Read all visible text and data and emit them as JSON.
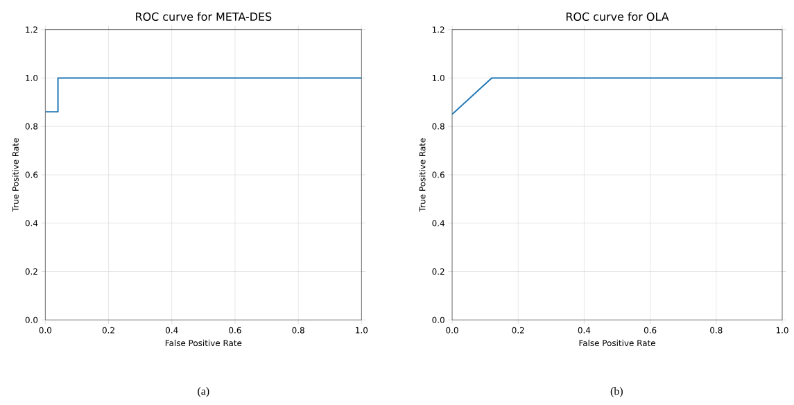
{
  "chart_data": [
    {
      "type": "line",
      "title": "ROC curve for META-DES",
      "xlabel": "False Positive Rate",
      "ylabel": "True Positive Rate",
      "x": [
        0,
        0.04,
        0.04,
        1
      ],
      "values": [
        0.86,
        0.86,
        1.0,
        1.0
      ],
      "color": "#1f77b4",
      "xlim": [
        0,
        1
      ],
      "ylim": [
        0,
        1.2
      ],
      "xticks": [
        {
          "value": 0,
          "label": "0.0"
        },
        {
          "value": 0.2,
          "label": "0.2"
        },
        {
          "value": 0.4,
          "label": "0.4"
        },
        {
          "value": 0.6,
          "label": "0.6"
        },
        {
          "value": 0.8,
          "label": "0.8"
        },
        {
          "value": 1,
          "label": "1.0"
        }
      ],
      "yticks": [
        {
          "value": 0,
          "label": "0.0"
        },
        {
          "value": 0.2,
          "label": "0.2"
        },
        {
          "value": 0.4,
          "label": "0.4"
        },
        {
          "value": 0.6,
          "label": "0.6"
        },
        {
          "value": 0.8,
          "label": "0.8"
        },
        {
          "value": 1,
          "label": "1.0"
        },
        {
          "value": 1.2,
          "label": "1.2"
        }
      ],
      "grid": true,
      "annotations": [
        "(a)"
      ]
    },
    {
      "type": "line",
      "title": "ROC curve for OLA",
      "xlabel": "False Positive Rate",
      "ylabel": "True Positive Rate",
      "x": [
        0,
        0.12,
        1
      ],
      "values": [
        0.85,
        1.0,
        1.0
      ],
      "color": "#1f77b4",
      "xlim": [
        0,
        1
      ],
      "ylim": [
        0,
        1.2
      ],
      "xticks": [
        {
          "value": 0,
          "label": "0.0"
        },
        {
          "value": 0.2,
          "label": "0.2"
        },
        {
          "value": 0.4,
          "label": "0.4"
        },
        {
          "value": 0.6,
          "label": "0.6"
        },
        {
          "value": 0.8,
          "label": "0.8"
        },
        {
          "value": 1,
          "label": "1.0"
        }
      ],
      "yticks": [
        {
          "value": 0,
          "label": "0.0"
        },
        {
          "value": 0.2,
          "label": "0.2"
        },
        {
          "value": 0.4,
          "label": "0.4"
        },
        {
          "value": 0.6,
          "label": "0.6"
        },
        {
          "value": 0.8,
          "label": "0.8"
        },
        {
          "value": 1,
          "label": "1.0"
        },
        {
          "value": 1.2,
          "label": "1.2"
        }
      ],
      "grid": true,
      "annotations": [
        "(b)"
      ]
    }
  ]
}
